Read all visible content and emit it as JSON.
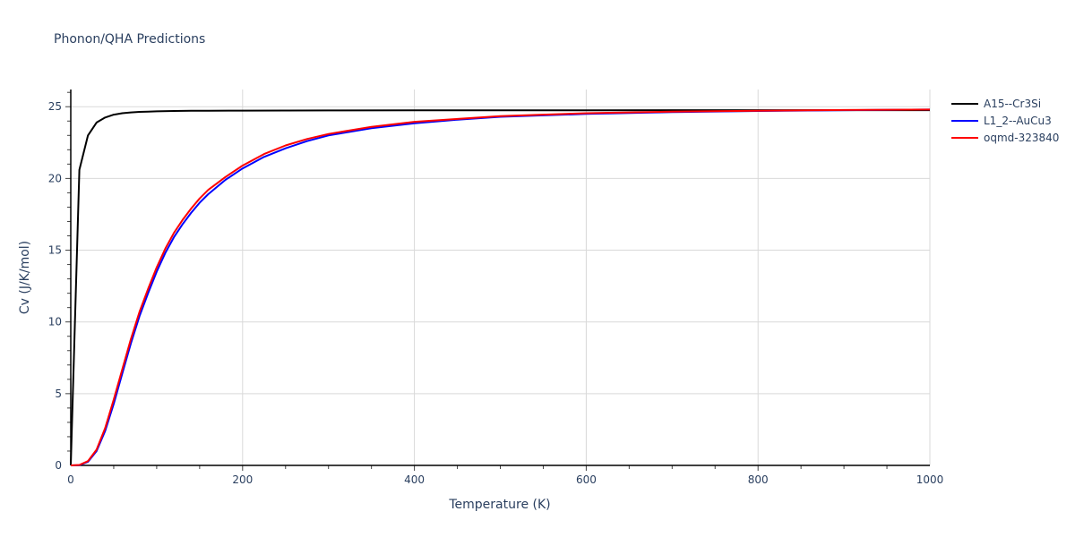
{
  "chart_data": {
    "type": "line",
    "title": "Phonon/QHA Predictions",
    "xlabel": "Temperature (K)",
    "ylabel": "Cv (J/K/mol)",
    "xlim": [
      0,
      1000
    ],
    "ylim": [
      0,
      26.2
    ],
    "x_ticks": [
      0,
      200,
      400,
      600,
      800,
      1000
    ],
    "y_ticks": [
      0,
      5,
      10,
      15,
      20,
      25
    ],
    "grid": true,
    "legend_position": "top-right-outside",
    "series": [
      {
        "name": "A15--Cr3Si",
        "color": "#000000",
        "x": [
          0,
          10,
          20,
          30,
          40,
          50,
          60,
          70,
          80,
          90,
          100,
          120,
          140,
          160,
          200,
          300,
          400,
          500,
          600,
          700,
          800,
          900,
          1000
        ],
        "y": [
          0,
          20.6,
          23.0,
          23.9,
          24.25,
          24.45,
          24.55,
          24.6,
          24.64,
          24.66,
          24.68,
          24.7,
          24.72,
          24.72,
          24.73,
          24.74,
          24.75,
          24.75,
          24.75,
          24.76,
          24.76,
          24.76,
          24.76
        ]
      },
      {
        "name": "L1_2--AuCu3",
        "color": "#0000ff",
        "x": [
          0,
          10,
          20,
          30,
          40,
          50,
          60,
          70,
          80,
          90,
          100,
          110,
          120,
          130,
          140,
          150,
          160,
          180,
          200,
          225,
          250,
          275,
          300,
          350,
          400,
          450,
          500,
          600,
          700,
          800,
          900,
          1000
        ],
        "y": [
          0,
          0.02,
          0.25,
          1.0,
          2.4,
          4.3,
          6.4,
          8.5,
          10.4,
          12.0,
          13.5,
          14.8,
          15.9,
          16.8,
          17.6,
          18.3,
          18.9,
          19.9,
          20.7,
          21.5,
          22.1,
          22.6,
          23.0,
          23.5,
          23.85,
          24.1,
          24.3,
          24.5,
          24.62,
          24.7,
          24.76,
          24.8
        ]
      },
      {
        "name": "oqmd-323840",
        "color": "#ff0000",
        "x": [
          0,
          10,
          20,
          30,
          40,
          50,
          60,
          70,
          80,
          90,
          100,
          110,
          120,
          130,
          140,
          150,
          160,
          180,
          200,
          225,
          250,
          275,
          300,
          350,
          400,
          450,
          500,
          600,
          700,
          800,
          900,
          1000
        ],
        "y": [
          0,
          0.03,
          0.3,
          1.1,
          2.6,
          4.6,
          6.7,
          8.8,
          10.7,
          12.3,
          13.8,
          15.1,
          16.2,
          17.1,
          17.9,
          18.6,
          19.2,
          20.1,
          20.9,
          21.7,
          22.3,
          22.75,
          23.1,
          23.6,
          23.95,
          24.15,
          24.35,
          24.55,
          24.65,
          24.72,
          24.77,
          24.8
        ]
      }
    ]
  },
  "legend": {
    "items": [
      {
        "label": "A15--Cr3Si",
        "color": "#000000"
      },
      {
        "label": "L1_2--AuCu3",
        "color": "#0000ff"
      },
      {
        "label": "oqmd-323840",
        "color": "#ff0000"
      }
    ]
  }
}
